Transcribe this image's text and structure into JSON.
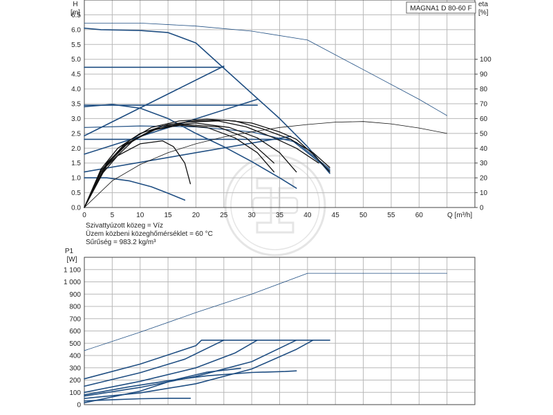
{
  "title": "MAGNA1 D 80-60 F",
  "notes": [
    "Szivattyúzott közeg = Víz",
    "Üzem közbeni közeghőmérséklet = 60 °C",
    "Sűrűség = 983.2 kg/m³"
  ],
  "colors": {
    "curve_blue": "#1f4e82",
    "curve_black": "#111111",
    "grid": "#b8b8b8",
    "watermark": "#d0d0d0"
  },
  "chart_data": [
    {
      "type": "line",
      "id": "head_eta",
      "xlabel": "Q [m³/h]",
      "ylabel_h": "H",
      "ylabel_h_unit": "[m]",
      "ylabel_eta": "eta",
      "ylabel_eta_unit": "[%]",
      "xlim": [
        0,
        70
      ],
      "ylim": [
        0,
        7
      ],
      "eta_lim": [
        0,
        140
      ],
      "grid": true,
      "x_ticks": [
        "0",
        "5",
        "10",
        "15",
        "20",
        "25",
        "30",
        "35",
        "40",
        "45",
        "50",
        "55",
        "60"
      ],
      "y_ticks": [
        "0.0",
        "0.5",
        "1.0",
        "1.5",
        "2.0",
        "2.5",
        "3.0",
        "3.5",
        "4.0",
        "4.5",
        "5.0",
        "5.5",
        "6.0",
        "6.5"
      ],
      "eta_ticks": [
        "0",
        "10",
        "20",
        "30",
        "40",
        "50",
        "60",
        "70",
        "80",
        "90",
        "100"
      ],
      "series": [
        {
          "color": "#1f4e82",
          "width": 1.6,
          "points": [
            [
              0,
              6.05
            ],
            [
              3,
              6.0
            ],
            [
              10,
              5.97
            ],
            [
              15,
              5.9
            ],
            [
              20,
              5.55
            ],
            [
              25,
              4.7
            ],
            [
              30,
              3.85
            ],
            [
              35,
              3.0
            ],
            [
              40,
              2.05
            ],
            [
              44,
              1.15
            ]
          ]
        },
        {
          "color": "#1f4e82",
          "width": 1.6,
          "points": [
            [
              0,
              4.73
            ],
            [
              25,
              4.73
            ]
          ]
        },
        {
          "color": "#1f4e82",
          "width": 1.6,
          "points": [
            [
              0,
              3.45
            ],
            [
              31,
              3.45
            ]
          ]
        },
        {
          "color": "#1f4e82",
          "width": 1.6,
          "points": [
            [
              0,
              2.3
            ],
            [
              37,
              2.3
            ],
            [
              44,
              1.25
            ]
          ]
        },
        {
          "color": "#1f4e82",
          "width": 1.6,
          "points": [
            [
              0,
              2.42
            ],
            [
              25,
              4.77
            ]
          ]
        },
        {
          "color": "#1f4e82",
          "width": 1.6,
          "points": [
            [
              0,
              1.8
            ],
            [
              31,
              3.65
            ]
          ]
        },
        {
          "color": "#1f4e82",
          "width": 1.6,
          "points": [
            [
              0,
              1.2
            ],
            [
              37,
              2.4
            ]
          ]
        },
        {
          "color": "#1f4e82",
          "width": 1.6,
          "points": [
            [
              0,
              3.4
            ],
            [
              5,
              3.48
            ],
            [
              10,
              3.35
            ],
            [
              15,
              3.0
            ],
            [
              20,
              2.5
            ],
            [
              25,
              2.05
            ],
            [
              30,
              1.55
            ],
            [
              35,
              1.0
            ],
            [
              38,
              0.65
            ]
          ]
        },
        {
          "color": "#1f4e82",
          "width": 1.6,
          "points": [
            [
              0,
              1.0
            ],
            [
              4,
              1.0
            ],
            [
              8,
              0.9
            ],
            [
              12,
              0.7
            ],
            [
              15,
              0.48
            ],
            [
              18,
              0.25
            ]
          ]
        },
        {
          "color": "#1f4e82",
          "width": 1.2,
          "points": [
            [
              0,
              2.7
            ],
            [
              10,
              2.75
            ],
            [
              20,
              2.72
            ],
            [
              30,
              2.55
            ],
            [
              38,
              2.2
            ],
            [
              44,
              1.3
            ]
          ]
        },
        {
          "color": "#1f4e82",
          "width": 0.8,
          "points": [
            [
              0,
              6.22
            ],
            [
              10,
              6.22
            ],
            [
              20,
              6.12
            ],
            [
              30,
              5.95
            ],
            [
              40,
              5.65
            ],
            [
              50,
              4.65
            ],
            [
              60,
              3.65
            ],
            [
              65,
              3.1
            ]
          ]
        },
        {
          "color": "#111111",
          "width": 1.3,
          "points": [
            [
              0,
              0
            ],
            [
              3,
              1.3
            ],
            [
              6,
              2.0
            ],
            [
              10,
              2.5
            ],
            [
              15,
              2.8
            ],
            [
              20,
              2.92
            ],
            [
              25,
              2.95
            ],
            [
              30,
              2.85
            ],
            [
              35,
              2.55
            ],
            [
              38,
              2.3
            ],
            [
              41,
              1.8
            ],
            [
              44,
              1.2
            ]
          ]
        },
        {
          "color": "#111111",
          "width": 1.3,
          "points": [
            [
              0,
              0
            ],
            [
              4,
              1.5
            ],
            [
              8,
              2.25
            ],
            [
              12,
              2.7
            ],
            [
              17,
              2.92
            ],
            [
              22,
              2.98
            ],
            [
              27,
              2.92
            ],
            [
              32,
              2.65
            ],
            [
              37,
              2.3
            ],
            [
              41,
              1.85
            ],
            [
              44,
              1.35
            ]
          ]
        },
        {
          "color": "#111111",
          "width": 1.3,
          "points": [
            [
              0,
              0
            ],
            [
              3,
              1.2
            ],
            [
              7,
              2.05
            ],
            [
              12,
              2.6
            ],
            [
              18,
              2.88
            ],
            [
              24,
              2.92
            ],
            [
              29,
              2.72
            ],
            [
              34,
              2.35
            ],
            [
              38,
              2.0
            ],
            [
              42,
              1.5
            ]
          ]
        },
        {
          "color": "#111111",
          "width": 1.3,
          "points": [
            [
              0,
              0
            ],
            [
              4,
              1.4
            ],
            [
              9,
              2.3
            ],
            [
              14,
              2.75
            ],
            [
              20,
              2.85
            ],
            [
              26,
              2.7
            ],
            [
              31,
              2.35
            ],
            [
              35,
              1.85
            ],
            [
              38,
              1.2
            ]
          ]
        },
        {
          "color": "#111111",
          "width": 1.3,
          "points": [
            [
              0,
              0
            ],
            [
              3,
              1.25
            ],
            [
              7,
              2.1
            ],
            [
              12,
              2.6
            ],
            [
              17,
              2.78
            ],
            [
              22,
              2.7
            ],
            [
              27,
              2.35
            ],
            [
              31,
              1.85
            ],
            [
              34,
              1.2
            ]
          ]
        },
        {
          "color": "#111111",
          "width": 1.3,
          "points": [
            [
              0,
              0
            ],
            [
              4,
              1.45
            ],
            [
              8,
              2.2
            ],
            [
              13,
              2.65
            ],
            [
              18,
              2.8
            ],
            [
              24,
              2.72
            ],
            [
              29,
              2.35
            ],
            [
              34,
              1.5
            ]
          ]
        },
        {
          "color": "#111111",
          "width": 1.3,
          "points": [
            [
              0,
              0
            ],
            [
              3,
              1.1
            ],
            [
              6,
              1.75
            ],
            [
              10,
              2.15
            ],
            [
              14,
              2.25
            ],
            [
              16,
              2.05
            ],
            [
              18,
              1.5
            ],
            [
              19,
              0.8
            ]
          ]
        },
        {
          "color": "#111111",
          "width": 0.8,
          "points": [
            [
              0,
              0
            ],
            [
              5,
              0.9
            ],
            [
              10,
              1.45
            ],
            [
              15,
              1.85
            ],
            [
              20,
              2.15
            ],
            [
              25,
              2.38
            ],
            [
              30,
              2.55
            ],
            [
              35,
              2.7
            ],
            [
              40,
              2.8
            ],
            [
              45,
              2.88
            ],
            [
              50,
              2.9
            ],
            [
              55,
              2.82
            ],
            [
              60,
              2.68
            ],
            [
              65,
              2.5
            ]
          ]
        }
      ]
    },
    {
      "type": "line",
      "id": "power",
      "ylabel": "P1",
      "ylabel_unit": "[W]",
      "xlim": [
        0,
        70
      ],
      "ylim": [
        0,
        1200
      ],
      "grid": true,
      "y_ticks": [
        "0",
        "100",
        "200",
        "300",
        "400",
        "500",
        "600",
        "700",
        "800",
        "900",
        "1 000",
        "1 100"
      ],
      "series": [
        {
          "color": "#1f4e82",
          "width": 0.8,
          "points": [
            [
              0,
              440
            ],
            [
              10,
              590
            ],
            [
              20,
              750
            ],
            [
              30,
              900
            ],
            [
              40,
              1070
            ],
            [
              50,
              1070
            ],
            [
              65,
              1070
            ]
          ]
        },
        {
          "color": "#1f4e82",
          "width": 1.6,
          "points": [
            [
              0,
              210
            ],
            [
              10,
              330
            ],
            [
              20,
              480
            ],
            [
              21,
              525
            ],
            [
              44,
              525
            ]
          ]
        },
        {
          "color": "#1f4e82",
          "width": 1.6,
          "points": [
            [
              0,
              150
            ],
            [
              10,
              260
            ],
            [
              18,
              370
            ],
            [
              25,
              525
            ]
          ]
        },
        {
          "color": "#1f4e82",
          "width": 1.6,
          "points": [
            [
              0,
              100
            ],
            [
              10,
              190
            ],
            [
              20,
              300
            ],
            [
              27,
              420
            ],
            [
              31,
              525
            ]
          ]
        },
        {
          "color": "#1f4e82",
          "width": 1.6,
          "points": [
            [
              0,
              70
            ],
            [
              10,
              140
            ],
            [
              20,
              230
            ],
            [
              30,
              350
            ],
            [
              38,
              525
            ]
          ]
        },
        {
          "color": "#1f4e82",
          "width": 1.6,
          "points": [
            [
              0,
              50
            ],
            [
              10,
              95
            ],
            [
              20,
              170
            ],
            [
              30,
              290
            ],
            [
              38,
              450
            ],
            [
              41,
              525
            ]
          ]
        },
        {
          "color": "#1f4e82",
          "width": 1.6,
          "points": [
            [
              0,
              80
            ],
            [
              8,
              145
            ],
            [
              15,
              195
            ],
            [
              22,
              235
            ],
            [
              30,
              262
            ],
            [
              36,
              270
            ],
            [
              38,
              275
            ]
          ]
        },
        {
          "color": "#1f4e82",
          "width": 1.6,
          "points": [
            [
              0,
              30
            ],
            [
              5,
              40
            ],
            [
              10,
              48
            ],
            [
              15,
              52
            ],
            [
              19,
              52
            ]
          ]
        },
        {
          "color": "#1f4e82",
          "width": 1.6,
          "points": [
            [
              0,
              15
            ],
            [
              10,
              110
            ],
            [
              16,
              200
            ],
            [
              22,
              265
            ],
            [
              28,
              295
            ]
          ]
        }
      ]
    }
  ]
}
